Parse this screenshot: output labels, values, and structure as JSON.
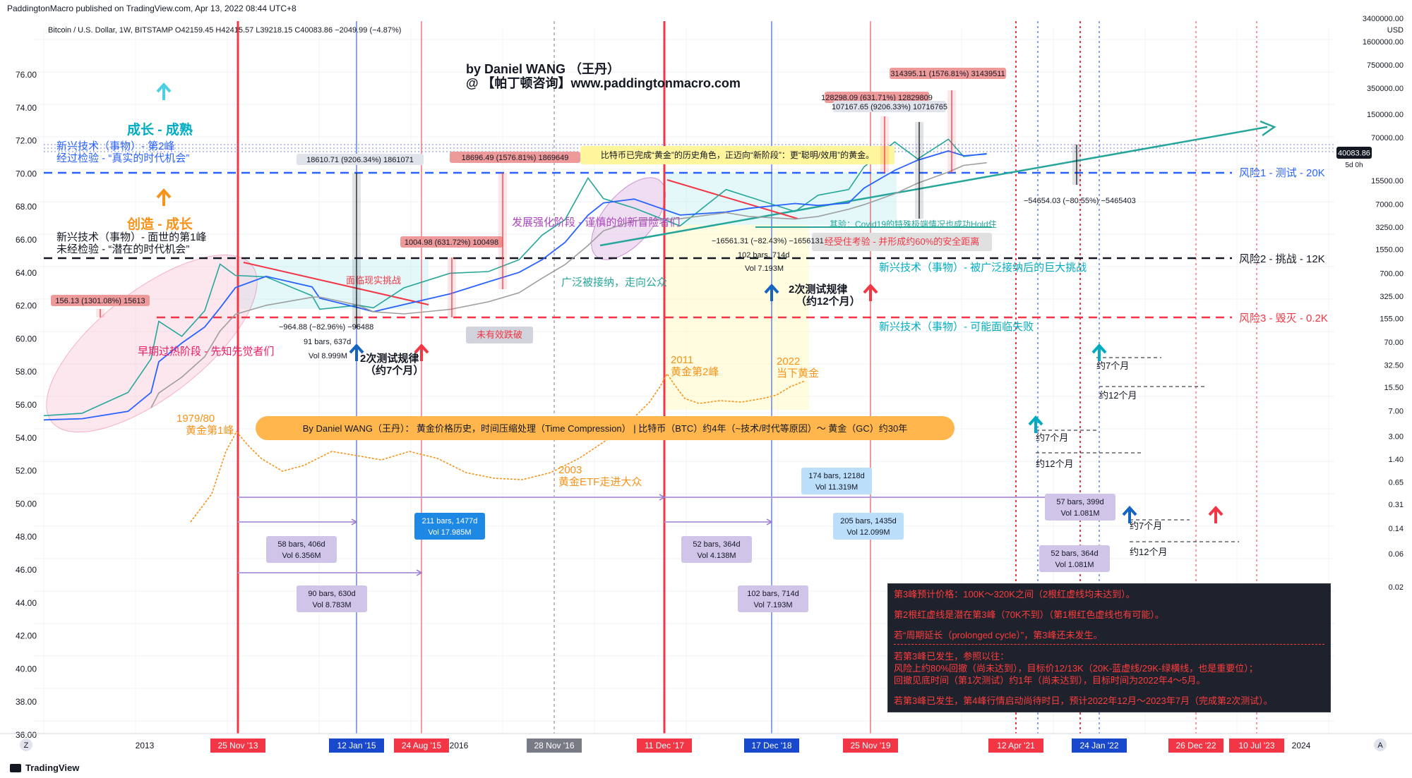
{
  "header": {
    "published": "PaddingtonMacro published on TradingView.com, Apr 13, 2022 08:44 UTC+8",
    "symbol_line": "Bitcoin / U.S. Dollar, 1W, BITSTAMP  O42159.45  H42415.57  L39218.15  C40083.86  −2049.99 (−4.87%)"
  },
  "author": {
    "line1": "by Daniel WANG （王丹）",
    "line2": "@ 【帕丁顿咨询】www.paddingtonmacro.com"
  },
  "footer": {
    "brand": "TradingView"
  },
  "price_axis": {
    "unit": "USD",
    "current_price": "40083.86",
    "countdown": "5d 0h",
    "labels": [
      {
        "t": "3400000.00",
        "v": 3400000
      },
      {
        "t": "1600000.00",
        "v": 1600000
      },
      {
        "t": "750000.00",
        "v": 750000
      },
      {
        "t": "350000.00",
        "v": 350000
      },
      {
        "t": "150000.00",
        "v": 150000
      },
      {
        "t": "70000.00",
        "v": 70000
      },
      {
        "t": "15500.00",
        "v": 15500
      },
      {
        "t": "7000.00",
        "v": 7000
      },
      {
        "t": "3250.00",
        "v": 3250
      },
      {
        "t": "1550.00",
        "v": 1550
      },
      {
        "t": "700.00",
        "v": 700
      },
      {
        "t": "325.00",
        "v": 325
      },
      {
        "t": "155.00",
        "v": 155
      },
      {
        "t": "70.00",
        "v": 70
      },
      {
        "t": "32.50",
        "v": 32.5
      },
      {
        "t": "15.50",
        "v": 15.5
      },
      {
        "t": "7.00",
        "v": 7
      },
      {
        "t": "3.00",
        "v": 3
      },
      {
        "t": "1.40",
        "v": 1.4
      },
      {
        "t": "0.65",
        "v": 0.65
      },
      {
        "t": "0.31",
        "v": 0.31
      },
      {
        "t": "0.14",
        "v": 0.14
      },
      {
        "t": "0.06",
        "v": 0.06
      },
      {
        "t": "0.02",
        "v": 0.02
      }
    ]
  },
  "gold_axis": {
    "labels": [
      "76.00",
      "74.00",
      "72.00",
      "70.00",
      "68.00",
      "66.00",
      "64.00",
      "62.00",
      "60.00",
      "58.00",
      "56.00",
      "54.00",
      "52.00",
      "50.00",
      "48.00",
      "46.00",
      "44.00",
      "42.00",
      "40.00",
      "38.00",
      "36.00"
    ]
  },
  "time_axis": {
    "labels": [
      "2013",
      "2016",
      "2024"
    ],
    "markers": [
      {
        "label": "25 Nov '13",
        "color": "#f23645"
      },
      {
        "label": "12 Jan '15",
        "color": "#1848cc"
      },
      {
        "label": "24 Aug '15",
        "color": "#f23645"
      },
      {
        "label": "28 Nov '16",
        "color": "#787b86"
      },
      {
        "label": "11 Dec '17",
        "color": "#f23645"
      },
      {
        "label": "17 Dec '18",
        "color": "#1848cc"
      },
      {
        "label": "25 Nov '19",
        "color": "#f23645"
      },
      {
        "label": "12 Apr '21",
        "color": "#f23645"
      },
      {
        "label": "24 Jan '22",
        "color": "#1848cc"
      },
      {
        "label": "26 Dec '22",
        "color": "#f23645"
      },
      {
        "label": "10 Jul '23",
        "color": "#f23645"
      }
    ],
    "z_label": "Z",
    "a_label": "A"
  },
  "risk_lines": {
    "risk1": "风险1 - 测试 - 20K",
    "risk2": "风险2 - 挑战 - 12K",
    "risk3": "风险3 - 毁灭 - 0.2K"
  },
  "annotations": {
    "growth_mature": "成长 - 成熟",
    "tech_peak2_a": "新兴技术（事物）- 第2峰",
    "tech_peak2_b": "经过检验 - “真实的时代机会”",
    "create_grow": "创造 - 成长",
    "tech_peak1_a": "新兴技术（事物）- 面世的第1峰",
    "tech_peak1_b": "未经检验 - “潜在的时代机会”",
    "early_phase": "早期过热阶段 - 先知先觉者们",
    "reality_challenge": "面临现实挑战",
    "no_breakdown": "未有效跌破",
    "dev_phase": "发展强化阶段 - 谨慎的创新冒险者们",
    "widely_accepted": "广泛被接纳，走向公众",
    "btc_gold": "比特币已完成“黄金”的历史角色，正迈向“新阶段”：更“聪明/效用”的黄金。",
    "covid": "其验：Covid19的特殊极端情况也成功Hold住",
    "safe_dist": "经受住考验 - 并形成约60%的安全距离",
    "big_challenge": "新兴技术（事物）- 被广泛接纳后的巨大挑战",
    "may_fail": "新兴技术（事物）- 可能面临失败",
    "retest1_a": "2次测试规律",
    "retest1_b": "（约7个月）",
    "retest2_a": "2次测试规律",
    "retest2_b": "（约12个月）",
    "gold_1979": "1979/80",
    "gold_peak1": "黄金第1峰",
    "gold_2011": "2011",
    "gold_peak2": "黄金第2峰",
    "gold_2022": "2022",
    "gold_now": "当下黄金",
    "gold_2003": "2003",
    "gold_etf": "黄金ETF走进大众",
    "banner": "By Daniel WANG（王丹）：  黄金价格历史，时间压缩处理（Time Compression） |  比特币（BTC）约4年（~技术/时代等原因）～ 黄金（GC）约30年",
    "approx7": "约7个月",
    "approx12": "约12个月"
  },
  "measure_labels": {
    "m1": "156.13 (1301.08%) 15613",
    "m2": "18610.71 (9206.34%) 1861071",
    "m3": "1004.98 (631.72%) 100498",
    "m4": "18696.49 (1576.81%) 1869649",
    "m5": "128298.09 (631.71%) 12829809",
    "m6": "107167.65 (9206.33%) 10716765",
    "m7": "314395.11 (1576.81%) 31439511",
    "d1": "−964.88 (−82.96%) −96488",
    "d1b": "91 bars, 637d",
    "d1c": "Vol 8.999M",
    "d2": "−16561.31 (−82.43%) −1656131",
    "d2b": "102 bars, 714d",
    "d2c": "Vol 7.193M",
    "d3": "−54654.03 (−80.55%) −5465403"
  },
  "range_boxes": {
    "r1": [
      "58 bars, 406d",
      "Vol 6.356M"
    ],
    "r2": [
      "90 bars, 630d",
      "Vol 8.783M"
    ],
    "r3": [
      "211 bars, 1477d",
      "Vol 17.985M"
    ],
    "r4": [
      "52 bars, 364d",
      "Vol 4.138M"
    ],
    "r5": [
      "102 bars, 714d",
      "Vol 7.193M"
    ],
    "r6": [
      "174 bars, 1218d",
      "Vol 11.319M"
    ],
    "r7": [
      "205 bars, 1435d",
      "Vol 12.099M"
    ],
    "r8": [
      "57 bars, 399d",
      "Vol 1.081M"
    ],
    "r9": [
      "52 bars, 364d",
      "Vol 1.081M"
    ]
  },
  "notes": [
    "第3峰预计价格：100K～320K之间（2根红虚线均未达到）。",
    "",
    "第2根红虚线是潜在第3峰（70K不到）（第1根红色虚线也有可能）。",
    "",
    "若“周期延长（prolonged cycle）”，第3峰还未发生。",
    "---",
    "若第3峰已发生，参照以往：",
    "风险上约80%回撤（尚未达到），目标价12/13K（20K-蓝虚线/29K-绿横线，也是重要位）；",
    "回撤见底时间（第1次测试）约1年（尚未达到），目标时间为2022年4～5月。",
    "",
    "若第3峰已发生，第4峰行情启动尚待时日，预计2022年12月～2023年7月（完成第2次测试）。"
  ],
  "colors": {
    "red": "#f23645",
    "blue": "#1848cc",
    "orange": "#f7931a",
    "teal": "#00bcd4",
    "green": "#26a69a",
    "candle": "#2962ff"
  },
  "chart_data": {
    "type": "line",
    "title": "Bitcoin / U.S. Dollar, 1W, BITSTAMP",
    "scale": "log",
    "ylabel": "USD",
    "series": [
      {
        "name": "Bitcoin / U.S. Dollar",
        "points": [
          [
            "2012-01",
            6
          ],
          [
            "2012-06",
            6.5
          ],
          [
            "2012-12",
            13
          ],
          [
            "2013-03",
            40
          ],
          [
            "2013-04",
            140
          ],
          [
            "2013-07",
            85
          ],
          [
            "2013-10",
            200
          ],
          [
            "2013-12",
            950
          ],
          [
            "2014-02",
            650
          ],
          [
            "2014-06",
            620
          ],
          [
            "2014-12",
            330
          ],
          [
            "2015-01",
            210
          ],
          [
            "2015-06",
            240
          ],
          [
            "2015-08",
            220
          ],
          [
            "2015-12",
            430
          ],
          [
            "2016-06",
            700
          ],
          [
            "2016-11",
            740
          ],
          [
            "2017-03",
            1100
          ],
          [
            "2017-06",
            2500
          ],
          [
            "2017-09",
            4200
          ],
          [
            "2017-12",
            17000
          ],
          [
            "2018-02",
            8500
          ],
          [
            "2018-06",
            6200
          ],
          [
            "2018-12",
            3400
          ],
          [
            "2019-06",
            11500
          ],
          [
            "2019-09",
            9000
          ],
          [
            "2020-03",
            5500
          ],
          [
            "2020-06",
            9500
          ],
          [
            "2020-10",
            11500
          ],
          [
            "2020-12",
            25000
          ],
          [
            "2021-04",
            60000
          ],
          [
            "2021-07",
            33000
          ],
          [
            "2021-11",
            66000
          ],
          [
            "2022-01",
            36000
          ],
          [
            "2022-04",
            40083.86
          ]
        ]
      }
    ]
  }
}
